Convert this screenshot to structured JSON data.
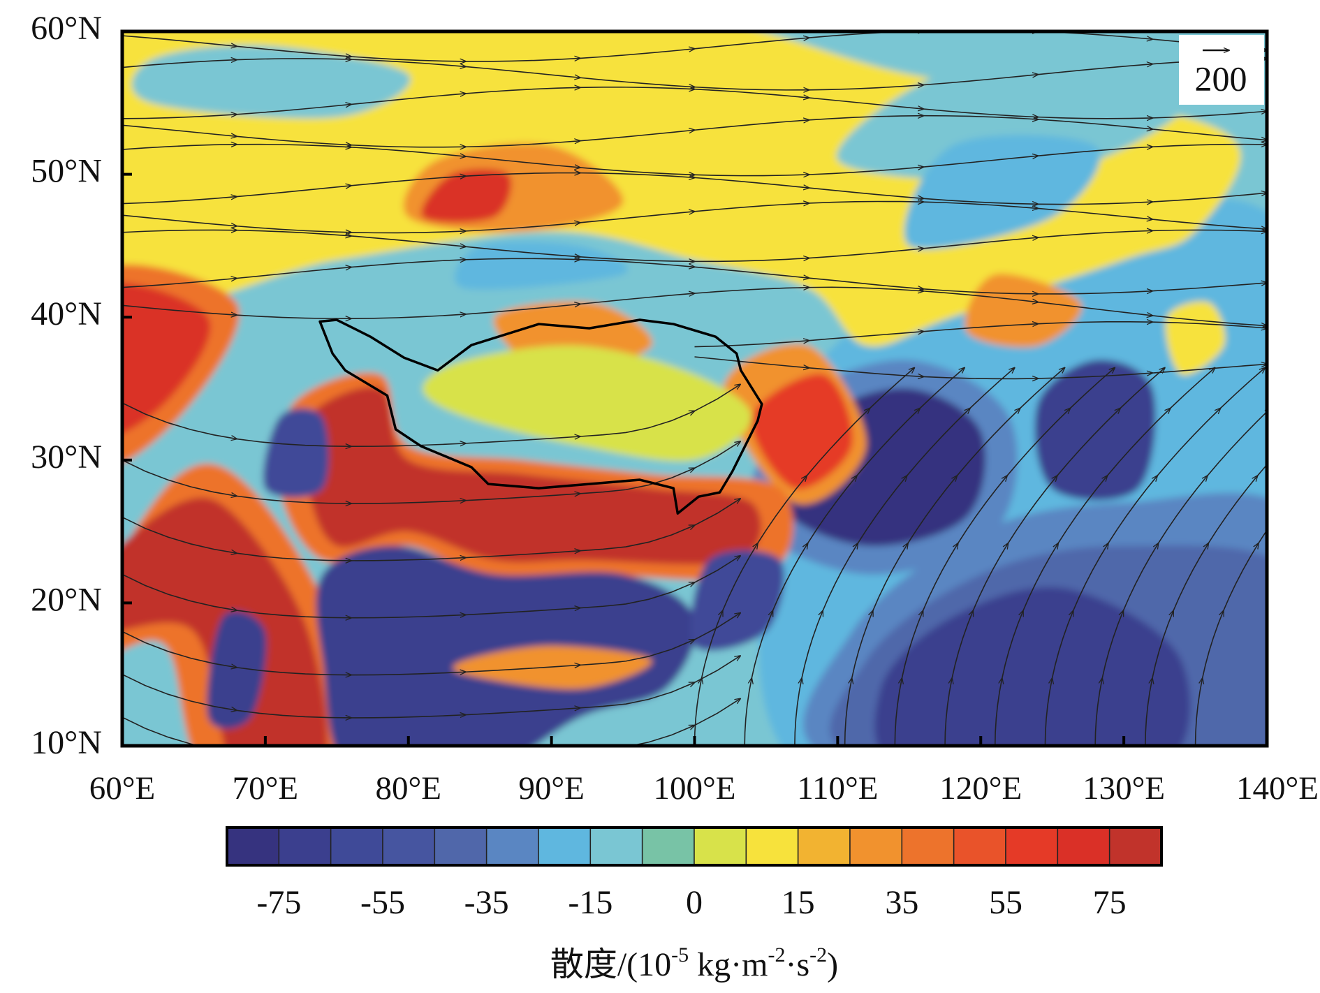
{
  "map": {
    "lat_labels": [
      "60°N",
      "50°N",
      "40°N",
      "30°N",
      "20°N",
      "10°N"
    ],
    "lon_labels": [
      "60°E",
      "70°E",
      "80°E",
      "90°E",
      "100°E",
      "110°E",
      "120°E",
      "130°E",
      "140°E"
    ],
    "reference_vector": "200",
    "colorbar": {
      "colors": [
        "#36337f",
        "#3b3f8e",
        "#3f4a98",
        "#4655a0",
        "#5067aa",
        "#5a86c2",
        "#5fb7df",
        "#7ac6d3",
        "#78c3a6",
        "#d8e24a",
        "#f7e23c",
        "#f2b331",
        "#f1922e",
        "#ed732c",
        "#e9532a",
        "#e53a27",
        "#da3027",
        "#c1332b"
      ],
      "labels": [
        -75,
        -55,
        -35,
        -15,
        0,
        15,
        35,
        55,
        75
      ],
      "title": [
        "散度/(10",
        "-5",
        " kg·m",
        "-2",
        "·s",
        "-2",
        ")"
      ]
    }
  }
}
